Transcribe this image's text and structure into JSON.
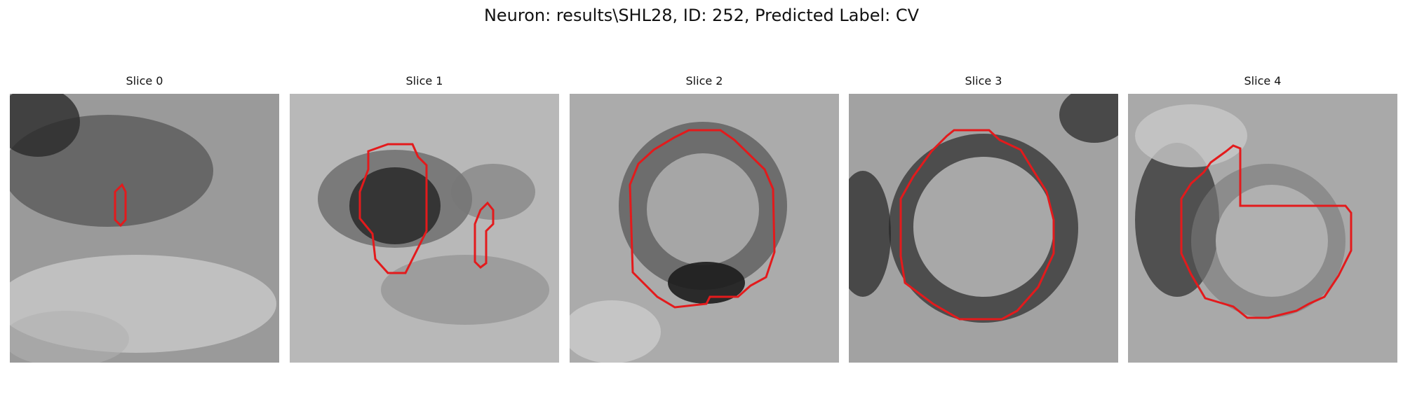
{
  "figure": {
    "title": "Neuron: results\\SHL28, ID: 252, Predicted Label: CV",
    "contour_color": "#e31a1c",
    "colormap": "gray"
  },
  "slices": [
    {
      "label": "Slice 0",
      "feature": "faint dark blob upper-left with tiny contour"
    },
    {
      "label": "Slice 1",
      "feature": "dark cell body with polygon contour and small side contour"
    },
    {
      "label": "Slice 2",
      "feature": "round cell with dark ring and large circular contour"
    },
    {
      "label": "Slice 3",
      "feature": "round cell with dark ring and large circular contour"
    },
    {
      "label": "Slice 4",
      "feature": "cell with notched contour"
    }
  ]
}
